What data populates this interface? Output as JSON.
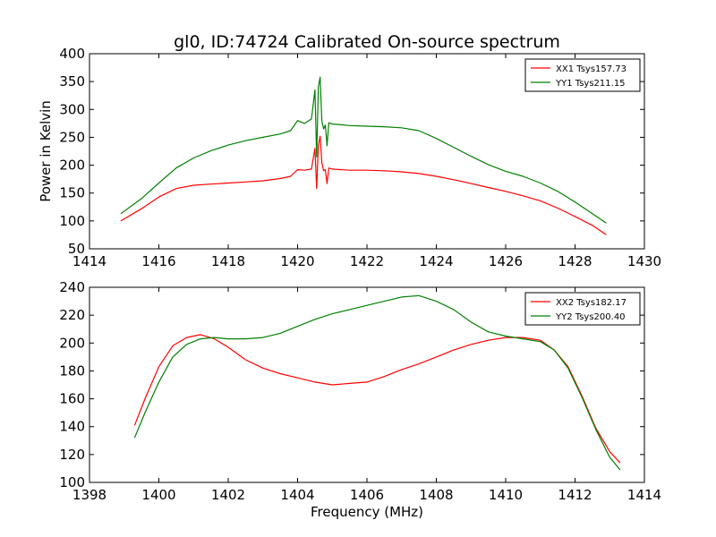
{
  "figure": {
    "title": "gl0, ID:74724 Calibrated On-source spectrum"
  },
  "chart_data": [
    {
      "type": "line",
      "title": "gl0, ID:74724 Calibrated On-source spectrum",
      "xlabel": "",
      "ylabel": "Power in Kelvin",
      "xlim": [
        1414,
        1430
      ],
      "ylim": [
        50,
        400
      ],
      "xticks": [
        1414,
        1416,
        1418,
        1420,
        1422,
        1424,
        1426,
        1428,
        1430
      ],
      "yticks": [
        50,
        100,
        150,
        200,
        250,
        300,
        350,
        400
      ],
      "grid": false,
      "legend_position": "top-right",
      "series": [
        {
          "name": "XX1 Tsys157.73",
          "color": "#ff0000",
          "x": [
            1414.9,
            1415.5,
            1416.0,
            1416.5,
            1417.0,
            1417.5,
            1418.0,
            1418.5,
            1419.0,
            1419.5,
            1419.8,
            1420.0,
            1420.2,
            1420.4,
            1420.5,
            1420.55,
            1420.6,
            1420.65,
            1420.7,
            1420.75,
            1420.8,
            1420.85,
            1420.9,
            1421.0,
            1421.5,
            1422.0,
            1422.5,
            1423.0,
            1423.5,
            1424.0,
            1424.5,
            1425.0,
            1425.5,
            1426.0,
            1426.5,
            1427.0,
            1427.5,
            1428.0,
            1428.5,
            1428.9
          ],
          "values": [
            100,
            122,
            143,
            158,
            164,
            166,
            168,
            170,
            172,
            176,
            180,
            192,
            191,
            193,
            230,
            158,
            235,
            252,
            205,
            190,
            192,
            167,
            195,
            193,
            191,
            191,
            190,
            188,
            185,
            180,
            174,
            167,
            160,
            153,
            145,
            136,
            123,
            108,
            92,
            75
          ]
        },
        {
          "name": "YY1 Tsys211.15",
          "color": "#008000",
          "x": [
            1414.9,
            1415.5,
            1416.0,
            1416.5,
            1417.0,
            1417.5,
            1418.0,
            1418.5,
            1419.0,
            1419.5,
            1419.8,
            1420.0,
            1420.2,
            1420.4,
            1420.5,
            1420.55,
            1420.6,
            1420.65,
            1420.7,
            1420.75,
            1420.8,
            1420.85,
            1420.9,
            1421.0,
            1421.5,
            1422.0,
            1422.5,
            1423.0,
            1423.5,
            1424.0,
            1424.5,
            1425.0,
            1425.5,
            1426.0,
            1426.5,
            1427.0,
            1427.5,
            1428.0,
            1428.5,
            1428.9
          ],
          "values": [
            113,
            140,
            168,
            195,
            213,
            226,
            236,
            244,
            250,
            256,
            262,
            280,
            275,
            283,
            335,
            215,
            340,
            358,
            280,
            265,
            272,
            235,
            276,
            274,
            271,
            270,
            269,
            267,
            262,
            248,
            232,
            216,
            201,
            189,
            180,
            168,
            153,
            134,
            113,
            96
          ]
        }
      ]
    },
    {
      "type": "line",
      "title": "",
      "xlabel": "Frequency (MHz)",
      "ylabel": "",
      "xlim": [
        1398,
        1414
      ],
      "ylim": [
        100,
        240
      ],
      "xticks": [
        1398,
        1400,
        1402,
        1404,
        1406,
        1408,
        1410,
        1412,
        1414
      ],
      "yticks": [
        100,
        120,
        140,
        160,
        180,
        200,
        220,
        240
      ],
      "grid": false,
      "legend_position": "top-right",
      "series": [
        {
          "name": "XX2 Tsys182.17",
          "color": "#ff0000",
          "x": [
            1399.3,
            1399.6,
            1400.0,
            1400.4,
            1400.8,
            1401.2,
            1401.6,
            1402.0,
            1402.5,
            1403.0,
            1403.5,
            1404.0,
            1404.5,
            1405.0,
            1405.5,
            1406.0,
            1406.5,
            1407.0,
            1407.5,
            1408.0,
            1408.5,
            1409.0,
            1409.5,
            1410.0,
            1410.5,
            1411.0,
            1411.4,
            1411.8,
            1412.2,
            1412.6,
            1413.0,
            1413.3
          ],
          "values": [
            141,
            160,
            183,
            198,
            204,
            206,
            203,
            197,
            188,
            182,
            178,
            175,
            172,
            170,
            171,
            172,
            176,
            181,
            185,
            190,
            195,
            199,
            202,
            204,
            204,
            202,
            195,
            183,
            162,
            139,
            122,
            114
          ]
        },
        {
          "name": "YY2 Tsys200.40",
          "color": "#008000",
          "x": [
            1399.3,
            1399.6,
            1400.0,
            1400.4,
            1400.8,
            1401.2,
            1401.6,
            1402.0,
            1402.5,
            1403.0,
            1403.5,
            1404.0,
            1404.5,
            1405.0,
            1405.5,
            1406.0,
            1406.5,
            1407.0,
            1407.5,
            1408.0,
            1408.5,
            1409.0,
            1409.5,
            1410.0,
            1410.5,
            1411.0,
            1411.4,
            1411.8,
            1412.2,
            1412.6,
            1413.0,
            1413.3
          ],
          "values": [
            132,
            150,
            172,
            190,
            199,
            203,
            204,
            203,
            203,
            204,
            207,
            212,
            217,
            221,
            224,
            227,
            230,
            233,
            234,
            230,
            224,
            215,
            208,
            205,
            203,
            201,
            195,
            182,
            161,
            138,
            118,
            109
          ]
        }
      ]
    }
  ]
}
